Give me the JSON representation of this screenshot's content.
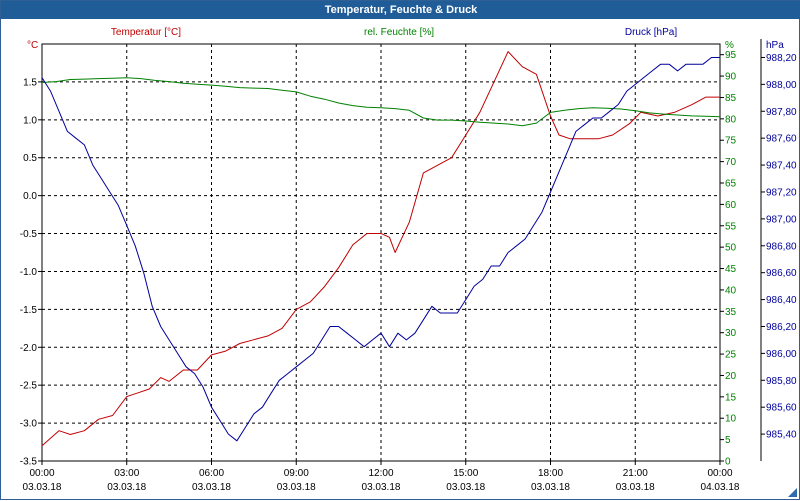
{
  "window": {
    "title": "Temperatur, Feuchte & Druck"
  },
  "colors": {
    "temperature": "#c00000",
    "humidity": "#008000",
    "pressure": "#00009c",
    "titlebar": "#1f5c98"
  },
  "chart_data": {
    "type": "line",
    "title": "Temperatur, Feuchte & Druck",
    "x": {
      "ticks": [
        {
          "time": "00:00",
          "date": "03.03.18"
        },
        {
          "time": "03:00",
          "date": "03.03.18"
        },
        {
          "time": "06:00",
          "date": "03.03.18"
        },
        {
          "time": "09:00",
          "date": "03.03.18"
        },
        {
          "time": "12:00",
          "date": "03.03.18"
        },
        {
          "time": "15:00",
          "date": "03.03.18"
        },
        {
          "time": "18:00",
          "date": "03.03.18"
        },
        {
          "time": "21:00",
          "date": "03.03.18"
        },
        {
          "time": "00:00",
          "date": "04.03.18"
        }
      ],
      "range_hours": [
        0,
        24
      ],
      "grid": true
    },
    "axes": {
      "temperature": {
        "label": "Temperatur [°C]",
        "unit": "°C",
        "range": [
          -3.5,
          2.0
        ],
        "ticks": [
          "-3.5",
          "-3.0",
          "-2.5",
          "-2.0",
          "-1.5",
          "-1.0",
          "-0.5",
          "0.0",
          "0.5",
          "1.0",
          "1.5"
        ]
      },
      "humidity": {
        "label": "rel. Feuchte [%]",
        "unit": "%",
        "range": [
          0,
          97.5
        ],
        "ticks": [
          "0",
          "5",
          "10",
          "15",
          "20",
          "25",
          "30",
          "35",
          "40",
          "45",
          "50",
          "55",
          "60",
          "65",
          "70",
          "75",
          "80",
          "85",
          "90",
          "95"
        ]
      },
      "pressure": {
        "label": "Druck [hPa]",
        "unit": "hPa",
        "range": [
          985.2,
          988.3
        ],
        "ticks": [
          "985,40",
          "985,60",
          "985,80",
          "986,00",
          "986,20",
          "986,40",
          "986,60",
          "986,80",
          "987,00",
          "987,20",
          "987,40",
          "987,60",
          "987,80",
          "988,00",
          "988,20"
        ]
      }
    },
    "series": [
      {
        "name": "Temperatur [°C]",
        "axis": "temperature",
        "points": [
          [
            0,
            -3.3
          ],
          [
            0.3,
            -3.2
          ],
          [
            0.6,
            -3.1
          ],
          [
            1.0,
            -3.15
          ],
          [
            1.5,
            -3.1
          ],
          [
            2.0,
            -2.95
          ],
          [
            2.5,
            -2.9
          ],
          [
            3.0,
            -2.65
          ],
          [
            3.4,
            -2.6
          ],
          [
            3.8,
            -2.55
          ],
          [
            4.2,
            -2.4
          ],
          [
            4.5,
            -2.45
          ],
          [
            5.0,
            -2.3
          ],
          [
            5.5,
            -2.3
          ],
          [
            6.0,
            -2.1
          ],
          [
            6.5,
            -2.05
          ],
          [
            7.0,
            -1.95
          ],
          [
            7.5,
            -1.9
          ],
          [
            8.0,
            -1.85
          ],
          [
            8.5,
            -1.75
          ],
          [
            9.0,
            -1.5
          ],
          [
            9.5,
            -1.4
          ],
          [
            10.0,
            -1.2
          ],
          [
            10.5,
            -0.95
          ],
          [
            11.0,
            -0.65
          ],
          [
            11.5,
            -0.5
          ],
          [
            12.0,
            -0.5
          ],
          [
            12.3,
            -0.55
          ],
          [
            12.5,
            -0.75
          ],
          [
            13.0,
            -0.35
          ],
          [
            13.5,
            0.3
          ],
          [
            14.0,
            0.4
          ],
          [
            14.5,
            0.5
          ],
          [
            15.0,
            0.8
          ],
          [
            15.5,
            1.1
          ],
          [
            16.0,
            1.5
          ],
          [
            16.5,
            1.9
          ],
          [
            17.0,
            1.7
          ],
          [
            17.5,
            1.6
          ],
          [
            18.0,
            1.05
          ],
          [
            18.3,
            0.8
          ],
          [
            18.7,
            0.75
          ],
          [
            19.2,
            0.75
          ],
          [
            19.7,
            0.75
          ],
          [
            20.2,
            0.8
          ],
          [
            20.8,
            0.95
          ],
          [
            21.2,
            1.1
          ],
          [
            21.8,
            1.05
          ],
          [
            22.4,
            1.1
          ],
          [
            23.0,
            1.2
          ],
          [
            23.5,
            1.3
          ],
          [
            24.0,
            1.3
          ]
        ]
      },
      {
        "name": "rel. Feuchte [%]",
        "axis": "humidity",
        "points": [
          [
            0,
            88.5
          ],
          [
            0.5,
            88.7
          ],
          [
            1.0,
            89.2
          ],
          [
            1.5,
            89.3
          ],
          [
            2.0,
            89.4
          ],
          [
            2.5,
            89.5
          ],
          [
            3.0,
            89.6
          ],
          [
            3.5,
            89.4
          ],
          [
            4.0,
            89.0
          ],
          [
            4.5,
            88.7
          ],
          [
            5.0,
            88.3
          ],
          [
            5.5,
            88.1
          ],
          [
            6.0,
            87.9
          ],
          [
            6.5,
            87.6
          ],
          [
            7.0,
            87.3
          ],
          [
            7.5,
            87.2
          ],
          [
            8.0,
            87.1
          ],
          [
            8.5,
            86.7
          ],
          [
            9.0,
            86.3
          ],
          [
            9.5,
            85.3
          ],
          [
            10.0,
            84.6
          ],
          [
            10.5,
            83.7
          ],
          [
            11.0,
            83.1
          ],
          [
            11.5,
            82.7
          ],
          [
            12.0,
            82.6
          ],
          [
            12.5,
            82.4
          ],
          [
            13.0,
            82.0
          ],
          [
            13.5,
            80.2
          ],
          [
            14.0,
            79.7
          ],
          [
            14.5,
            79.7
          ],
          [
            15.0,
            79.5
          ],
          [
            15.5,
            79.2
          ],
          [
            16.0,
            79.0
          ],
          [
            16.5,
            78.8
          ],
          [
            17.0,
            78.4
          ],
          [
            17.5,
            79.0
          ],
          [
            18.0,
            81.5
          ],
          [
            18.5,
            82.0
          ],
          [
            19.0,
            82.4
          ],
          [
            19.5,
            82.6
          ],
          [
            20.0,
            82.5
          ],
          [
            20.5,
            82.3
          ],
          [
            21.0,
            81.9
          ],
          [
            21.5,
            81.4
          ],
          [
            22.0,
            81.1
          ],
          [
            22.5,
            80.9
          ],
          [
            23.0,
            80.7
          ],
          [
            23.5,
            80.6
          ],
          [
            24.0,
            80.5
          ]
        ]
      },
      {
        "name": "Druck [hPa]",
        "axis": "pressure",
        "points": [
          [
            0,
            988.05
          ],
          [
            0.3,
            987.95
          ],
          [
            0.6,
            987.8
          ],
          [
            0.9,
            987.65
          ],
          [
            1.2,
            987.6
          ],
          [
            1.5,
            987.55
          ],
          [
            1.8,
            987.4
          ],
          [
            2.1,
            987.3
          ],
          [
            2.4,
            987.2
          ],
          [
            2.7,
            987.1
          ],
          [
            3.0,
            986.95
          ],
          [
            3.3,
            986.8
          ],
          [
            3.6,
            986.6
          ],
          [
            3.9,
            986.35
          ],
          [
            4.2,
            986.2
          ],
          [
            4.5,
            986.1
          ],
          [
            4.8,
            986.0
          ],
          [
            5.1,
            985.9
          ],
          [
            5.4,
            985.85
          ],
          [
            5.7,
            985.75
          ],
          [
            6.0,
            985.6
          ],
          [
            6.3,
            985.5
          ],
          [
            6.6,
            985.4
          ],
          [
            6.9,
            985.35
          ],
          [
            7.2,
            985.45
          ],
          [
            7.5,
            985.55
          ],
          [
            7.8,
            985.6
          ],
          [
            8.1,
            985.7
          ],
          [
            8.4,
            985.8
          ],
          [
            8.7,
            985.85
          ],
          [
            9.0,
            985.9
          ],
          [
            9.3,
            985.95
          ],
          [
            9.6,
            986.0
          ],
          [
            9.9,
            986.1
          ],
          [
            10.2,
            986.2
          ],
          [
            10.5,
            986.2
          ],
          [
            10.8,
            986.15
          ],
          [
            11.1,
            986.1
          ],
          [
            11.4,
            986.05
          ],
          [
            11.7,
            986.1
          ],
          [
            12.0,
            986.15
          ],
          [
            12.3,
            986.05
          ],
          [
            12.6,
            986.15
          ],
          [
            12.9,
            986.1
          ],
          [
            13.2,
            986.15
          ],
          [
            13.5,
            986.25
          ],
          [
            13.8,
            986.35
          ],
          [
            14.1,
            986.3
          ],
          [
            14.4,
            986.3
          ],
          [
            14.7,
            986.3
          ],
          [
            15.0,
            986.4
          ],
          [
            15.3,
            986.5
          ],
          [
            15.6,
            986.55
          ],
          [
            15.9,
            986.65
          ],
          [
            16.2,
            986.65
          ],
          [
            16.5,
            986.75
          ],
          [
            16.8,
            986.8
          ],
          [
            17.1,
            986.85
          ],
          [
            17.4,
            986.95
          ],
          [
            17.7,
            987.05
          ],
          [
            18.0,
            987.2
          ],
          [
            18.3,
            987.35
          ],
          [
            18.6,
            987.5
          ],
          [
            18.9,
            987.65
          ],
          [
            19.2,
            987.7
          ],
          [
            19.5,
            987.75
          ],
          [
            19.8,
            987.75
          ],
          [
            20.1,
            987.8
          ],
          [
            20.4,
            987.85
          ],
          [
            20.7,
            987.95
          ],
          [
            21.0,
            988.0
          ],
          [
            21.3,
            988.05
          ],
          [
            21.6,
            988.1
          ],
          [
            21.9,
            988.15
          ],
          [
            22.2,
            988.15
          ],
          [
            22.5,
            988.1
          ],
          [
            22.8,
            988.15
          ],
          [
            23.1,
            988.15
          ],
          [
            23.4,
            988.15
          ],
          [
            23.7,
            988.2
          ],
          [
            24.0,
            988.2
          ]
        ]
      }
    ]
  }
}
